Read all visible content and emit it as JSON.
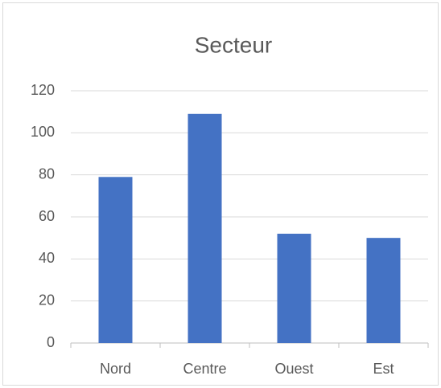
{
  "chart_data": {
    "type": "bar",
    "title": "Secteur",
    "categories": [
      "Nord",
      "Centre",
      "Ouest",
      "Est"
    ],
    "values": [
      79,
      109,
      52,
      50
    ],
    "color": "#4472c4",
    "ylim": [
      0,
      120
    ],
    "yticks": [
      0,
      20,
      40,
      60,
      80,
      100,
      120
    ],
    "grid": true
  }
}
